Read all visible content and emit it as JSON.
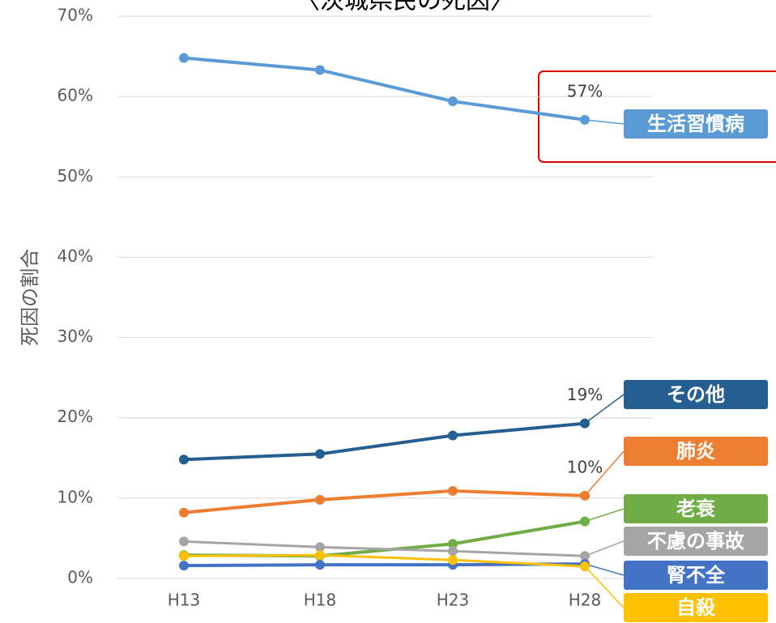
{
  "chart_data": {
    "type": "line",
    "title": "〈茨城県民の死因〉",
    "y_label": "死因の割合",
    "categories": [
      "H13",
      "H18",
      "H23",
      "H28"
    ],
    "ylim": [
      0,
      70
    ],
    "yticks": [
      {
        "value": 0,
        "label": "0%"
      },
      {
        "value": 10,
        "label": "10%"
      },
      {
        "value": 20,
        "label": "20%"
      },
      {
        "value": 30,
        "label": "30%"
      },
      {
        "value": 40,
        "label": "40%"
      },
      {
        "value": 50,
        "label": "50%"
      },
      {
        "value": 60,
        "label": "60%"
      },
      {
        "value": 70,
        "label": "70%"
      }
    ],
    "grid": true,
    "series": [
      {
        "name": "生活習慣病",
        "color": "#5b9bd5",
        "values": [
          64.8,
          63.3,
          59.4,
          57.1
        ],
        "value_labels": [
          null,
          null,
          null,
          "57%"
        ]
      },
      {
        "name": "その他",
        "color": "#255e91",
        "values": [
          14.8,
          15.5,
          17.8,
          19.3
        ],
        "value_labels": [
          null,
          null,
          null,
          "19%"
        ]
      },
      {
        "name": "肺炎",
        "color": "#ed7d31",
        "values": [
          8.2,
          9.8,
          10.9,
          10.3
        ],
        "value_labels": [
          null,
          null,
          null,
          "10%"
        ]
      },
      {
        "name": "老衰",
        "color": "#70ad47",
        "values": [
          2.9,
          2.8,
          4.3,
          7.1
        ]
      },
      {
        "name": "不慮の事故",
        "color": "#a5a5a5",
        "values": [
          4.6,
          3.9,
          3.4,
          2.8
        ]
      },
      {
        "name": "腎不全",
        "color": "#4472c4",
        "values": [
          1.6,
          1.7,
          1.7,
          1.8
        ]
      },
      {
        "name": "自殺",
        "color": "#ffc000",
        "values": [
          2.8,
          2.9,
          2.3,
          1.5
        ]
      }
    ]
  }
}
